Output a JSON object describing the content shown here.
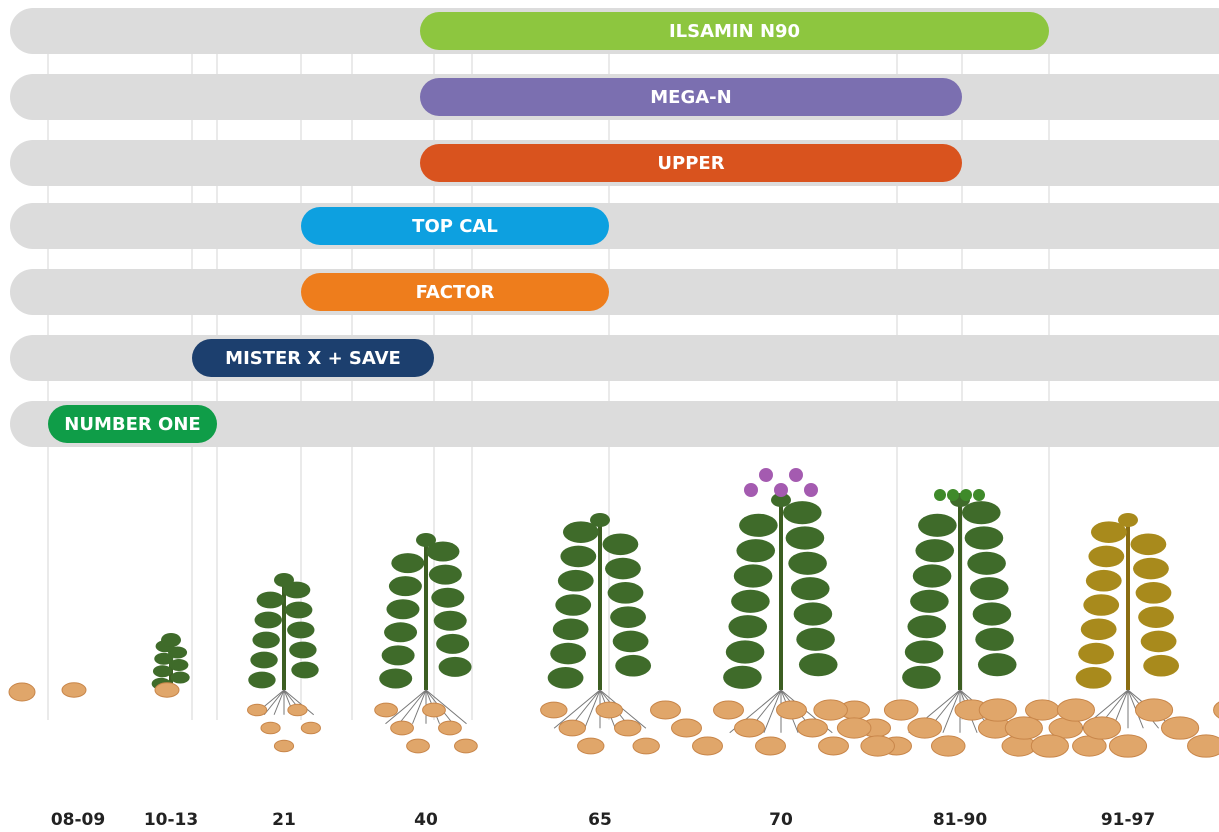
{
  "bars": [
    {
      "label": "ILSAMIN N90"
    },
    {
      "label": "MEGA-N"
    },
    {
      "label": "UPPER"
    },
    {
      "label": "TOP CAL"
    },
    {
      "label": "FACTOR"
    },
    {
      "label": "MISTER X + SAVE"
    },
    {
      "label": "NUMBER ONE"
    }
  ],
  "stages": [
    "08-09",
    "10-13",
    "21",
    "40",
    "65",
    "70",
    "81-90",
    "91-97"
  ]
}
